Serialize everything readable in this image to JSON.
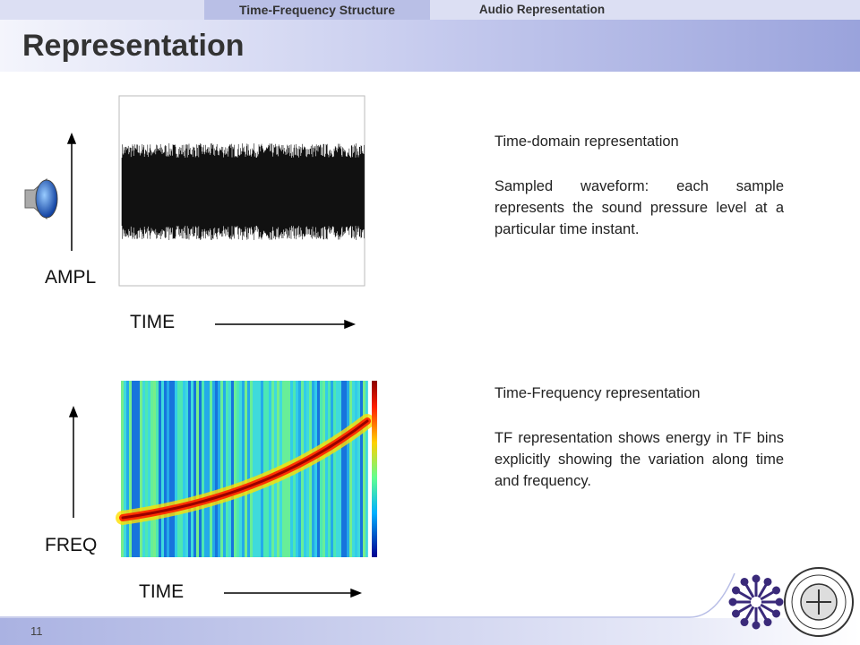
{
  "header": {
    "tabs": [
      "Time-Frequency Structure",
      "Audio Representation"
    ],
    "title": "Representation"
  },
  "time_domain": {
    "y_label": "AMPL",
    "x_label": "TIME",
    "heading": "Time-domain representation",
    "description": "Sampled waveform: each sample represents the sound pressure level at a particular time instant."
  },
  "time_frequency": {
    "y_label": "FREQ",
    "x_label": "TIME",
    "heading": "Time-Frequency representation",
    "description": "TF representation shows energy in TF bins explicitly showing the variation along time and frequency."
  },
  "footer": {
    "page_number": "11"
  }
}
